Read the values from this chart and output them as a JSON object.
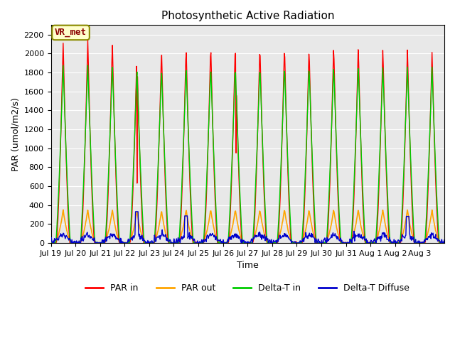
{
  "title": "Photosynthetic Active Radiation",
  "ylabel": "PAR (umol/m2/s)",
  "xlabel": "Time",
  "annotation": "VR_met",
  "ylim": [
    0,
    2300
  ],
  "background_color": "#e8e8e8",
  "legend_labels": [
    "PAR in",
    "PAR out",
    "Delta-T in",
    "Delta-T Diffuse"
  ],
  "legend_colors": [
    "#ff0000",
    "#ffa500",
    "#00cc00",
    "#0000cc"
  ],
  "tick_labels": [
    "Jul 19",
    "Jul 20",
    "Jul 21",
    "Jul 22",
    "Jul 23",
    "Jul 24",
    "Jul 25",
    "Jul 26",
    "Jul 27",
    "Jul 28",
    "Jul 29",
    "Jul 30",
    "Jul 31",
    "Aug 1",
    "Aug 2",
    "Aug 3"
  ],
  "n_days": 16,
  "samples_per_day": 48,
  "par_in_peaks": [
    2120,
    2160,
    2120,
    2030,
    2050,
    2090,
    2100,
    2110,
    2100,
    2100,
    2070,
    2100,
    2090,
    2070,
    2060,
    2020
  ],
  "par_out_peaks": [
    350,
    350,
    350,
    340,
    340,
    355,
    355,
    355,
    355,
    355,
    350,
    355,
    355,
    350,
    355,
    350
  ],
  "delta_t_in_peaks": [
    1880,
    1890,
    1880,
    1840,
    1840,
    1870,
    1870,
    1880,
    1880,
    1880,
    1880,
    1880,
    1880,
    1870,
    1870,
    1860
  ],
  "yticks": [
    0,
    200,
    400,
    600,
    800,
    1000,
    1200,
    1400,
    1600,
    1800,
    2000,
    2200
  ]
}
